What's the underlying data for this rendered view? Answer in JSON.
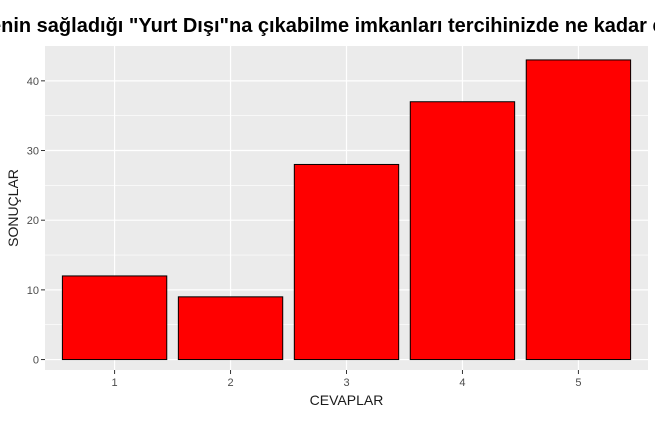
{
  "chart_data": {
    "type": "bar",
    "title": "enin sağladığı \"Yurt Dışı\"na çıkabilme imkanları tercihinizde ne kadar et",
    "xlabel": "CEVAPLAR",
    "ylabel": "SONUÇLAR",
    "categories": [
      "1",
      "2",
      "3",
      "4",
      "5"
    ],
    "values": [
      12,
      9,
      28,
      37,
      43
    ],
    "ylim": [
      -1.5,
      45
    ],
    "yticks": [
      0,
      10,
      20,
      30,
      40
    ],
    "grid": true,
    "legend": "none",
    "colors": {
      "bar_fill": "#ff0000",
      "bar_stroke": "#000000",
      "panel_background": "#ebebeb",
      "grid": "#ffffff"
    }
  }
}
